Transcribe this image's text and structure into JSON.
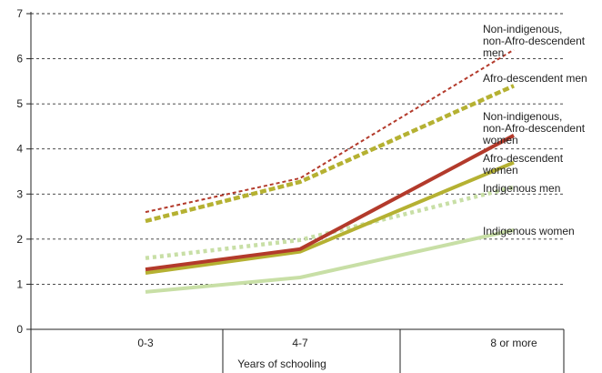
{
  "chart_data": {
    "type": "line",
    "title": "",
    "xlabel": "Years of schooling",
    "ylabel": "",
    "categories": [
      "0-3",
      "4-7",
      "8 or more"
    ],
    "ylim": [
      0,
      7
    ],
    "yticks": [
      0,
      1,
      2,
      3,
      4,
      5,
      6,
      7
    ],
    "grid": true,
    "series": [
      {
        "name": "Non-indigenous, non-Afro-descendent men",
        "label_lines": [
          "Non-indigenous,",
          "non-Afro-descendent",
          "men"
        ],
        "values": [
          2.6,
          3.35,
          6.2
        ],
        "color": "#b33a2b",
        "style": "dotted-thin"
      },
      {
        "name": "Afro-descendent men",
        "label_lines": [
          "Afro-descendent men"
        ],
        "values": [
          2.4,
          3.27,
          5.4
        ],
        "color": "#b5b132",
        "style": "dashed-thick"
      },
      {
        "name": "Non-indigenous, non-Afro-descendent women",
        "label_lines": [
          "Non-indigenous,",
          "non-Afro-descendent",
          "women"
        ],
        "values": [
          1.33,
          1.78,
          4.3
        ],
        "color": "#b33a2b",
        "style": "solid-thick"
      },
      {
        "name": "Afro-descendent women",
        "label_lines": [
          "Afro-descendent",
          "women"
        ],
        "values": [
          1.25,
          1.72,
          3.7
        ],
        "color": "#b5b132",
        "style": "solid-thick"
      },
      {
        "name": "Indigenous men",
        "label_lines": [
          "Indigenous men"
        ],
        "values": [
          1.58,
          1.98,
          3.15
        ],
        "color": "#c8dfa6",
        "style": "dotted-thick"
      },
      {
        "name": "Indigenous women",
        "label_lines": [
          "Indigenous women"
        ],
        "values": [
          0.83,
          1.15,
          2.2
        ],
        "color": "#c8dfa6",
        "style": "solid-thick"
      }
    ]
  }
}
